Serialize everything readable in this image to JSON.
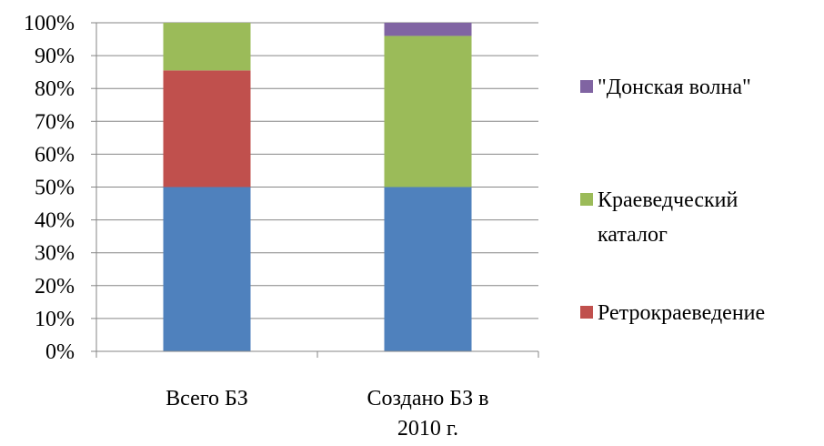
{
  "chart_data": {
    "type": "bar",
    "stacked": "percent",
    "categories": [
      [
        "Всего БЗ"
      ],
      [
        "Создано БЗ в",
        "2010 г."
      ]
    ],
    "series": [
      {
        "name": "",
        "color": "#4F81BD",
        "values": [
          50,
          50
        ]
      },
      {
        "name": "Ретрокраеведение",
        "color": "#C0504D",
        "values": [
          35.5,
          0
        ]
      },
      {
        "name": "Краеведческий каталог",
        "color": "#9BBB59",
        "values": [
          14.5,
          46
        ]
      },
      {
        "name": "\"Донская волна\"",
        "color": "#8064A2",
        "values": [
          0,
          4
        ]
      }
    ],
    "yticks": [
      "0%",
      "10%",
      "20%",
      "30%",
      "40%",
      "50%",
      "60%",
      "70%",
      "80%",
      "90%",
      "100%"
    ],
    "ylim": [
      0,
      100
    ],
    "grid": true,
    "legend_position": "right",
    "legend": [
      {
        "lines": [
          "\"Донская волна\""
        ],
        "color": "#8064A2"
      },
      {
        "lines": [
          "Краеведческий",
          "каталог"
        ],
        "color": "#9BBB59"
      },
      {
        "lines": [
          "Ретрокраеведение"
        ],
        "color": "#C0504D"
      }
    ]
  }
}
